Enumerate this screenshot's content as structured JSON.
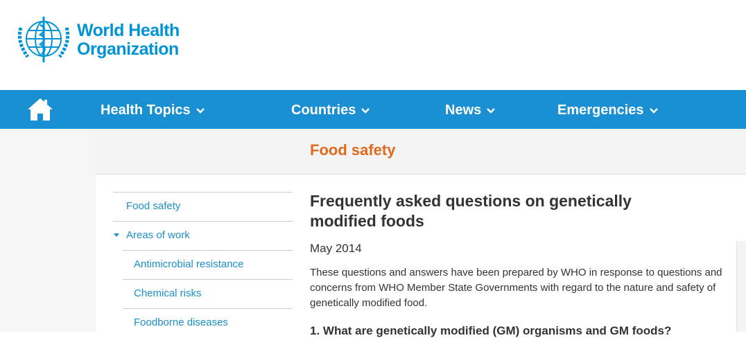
{
  "header": {
    "logo_line1": "World Health",
    "logo_line2": "Organization"
  },
  "nav": {
    "items": [
      "Health Topics",
      "Countries",
      "News",
      "Emergencies"
    ]
  },
  "section": {
    "title": "Food safety"
  },
  "sidebar": {
    "items": [
      "Food safety",
      "Areas of work",
      "Antimicrobial resistance",
      "Chemical risks",
      "Foodborne diseases"
    ]
  },
  "article": {
    "title": "Frequently asked questions on genetically modified foods",
    "date": "May 2014",
    "intro": "These questions and answers have been prepared by WHO in response to questions and concerns from WHO Member State Governments with regard to the nature and safety of genetically modified food.",
    "heading1": "1. What are genetically modified (GM) organisms and GM foods?"
  }
}
